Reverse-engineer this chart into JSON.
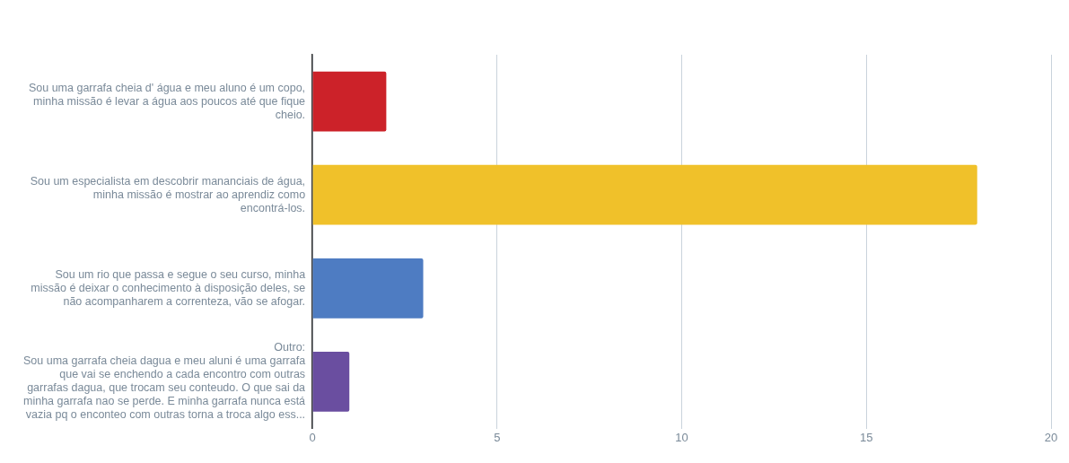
{
  "chart_data": {
    "type": "bar",
    "orientation": "horizontal",
    "categories": [
      "Sou uma garrafa cheia d' água e meu aluno é um copo,\nminha missão é levar a água aos poucos até que fique\ncheio.",
      "Sou um especialista em descobrir mananciais de água,\nminha missão é mostrar ao aprendiz como\nencontrá-los.",
      "Sou um rio que passa e segue o seu curso, minha\nmissão é deixar o conhecimento à disposição deles, se\nnão acompanharem a correnteza, vão se afogar.",
      "Outro:\nSou uma garrafa cheia dagua e meu aluni é uma garrafa\nque vai se enchendo a cada encontro com outras\ngarrafas dagua, que trocam seu conteudo. O que sai da\nminha garrafa nao se perde. E minha garrafa nunca está\nvazia pq o enconteo com outras torna a troca algo ess..."
    ],
    "values": [
      2,
      18,
      3,
      1
    ],
    "colors": [
      "#cc2229",
      "#f0c12a",
      "#4e7cc2",
      "#6a4ea0"
    ],
    "xlim": [
      0,
      20
    ],
    "xticks": [
      0,
      5,
      10,
      15,
      20
    ],
    "grid": "x"
  }
}
